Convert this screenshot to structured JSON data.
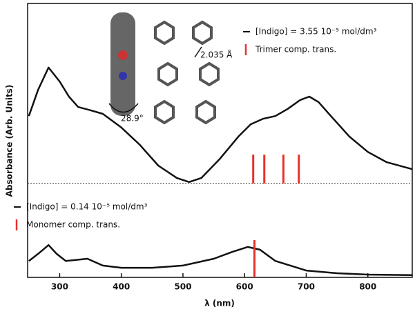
{
  "chart_data": {
    "type": "line",
    "xlabel": "λ (nm)",
    "ylabel": "Absorbance (Arb. Units)",
    "xlim": [
      248,
      872
    ],
    "xticks": [
      300,
      400,
      500,
      600,
      700,
      800
    ],
    "ylim": [
      0,
      1
    ],
    "baseline": 0.343,
    "series": [
      {
        "name": "[Indigo] = 3.55 10⁻⁵ mol/dm³",
        "color": "#111111",
        "x": [
          250,
          265,
          282,
          300,
          315,
          330,
          350,
          370,
          400,
          430,
          460,
          490,
          510,
          530,
          560,
          590,
          610,
          630,
          650,
          670,
          690,
          705,
          720,
          740,
          770,
          800,
          830,
          872
        ],
        "values": [
          0.589,
          0.685,
          0.766,
          0.715,
          0.66,
          0.622,
          0.61,
          0.597,
          0.547,
          0.484,
          0.408,
          0.363,
          0.348,
          0.363,
          0.433,
          0.514,
          0.559,
          0.579,
          0.589,
          0.615,
          0.647,
          0.66,
          0.64,
          0.589,
          0.514,
          0.458,
          0.421,
          0.395
        ]
      },
      {
        "name": "[Indigo] = 0.14 10⁻⁵ mol/dm³",
        "color": "#111111",
        "x": [
          250,
          265,
          282,
          295,
          310,
          345,
          370,
          400,
          450,
          500,
          550,
          580,
          605,
          625,
          650,
          700,
          750,
          800,
          872
        ],
        "values": [
          0.06,
          0.086,
          0.118,
          0.086,
          0.06,
          0.068,
          0.043,
          0.035,
          0.035,
          0.043,
          0.068,
          0.093,
          0.111,
          0.101,
          0.06,
          0.025,
          0.015,
          0.01,
          0.008
        ]
      }
    ],
    "sticks": [
      {
        "name": "Trimer comp. trans.",
        "color": "#e8312a",
        "base": 0.343,
        "x": [
          614,
          632,
          663,
          688
        ],
        "values": [
          0.448,
          0.448,
          0.448,
          0.448
        ]
      },
      {
        "name": "Monomer comp. trans.",
        "color": "#e8312a",
        "base": 0,
        "x": [
          616
        ],
        "values": [
          0.136
        ]
      }
    ],
    "annotations": [
      "28.9°",
      "2.035 Å"
    ]
  }
}
